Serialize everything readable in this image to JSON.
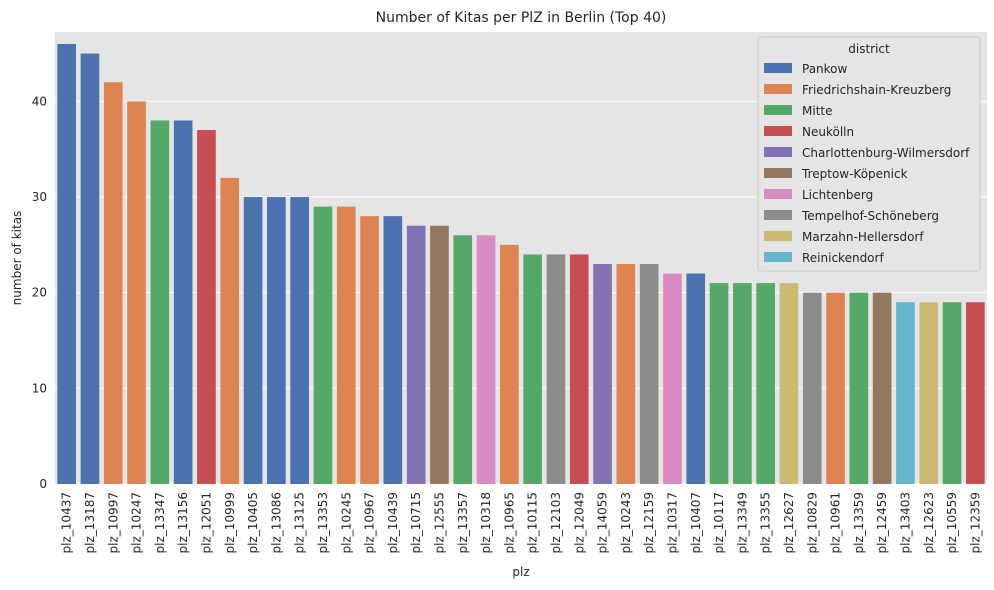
{
  "chart_data": {
    "type": "bar",
    "title": "Number of Kitas per PlZ in Berlin (Top 40)",
    "xlabel": "plz",
    "ylabel": "number of kitas",
    "ylim": [
      0,
      47.25
    ],
    "yticks": [
      0,
      10,
      20,
      30,
      40
    ],
    "grid": true,
    "legend": {
      "title": "district",
      "placement": "top-right",
      "entries": [
        {
          "name": "Pankow",
          "color": "#4c72b0"
        },
        {
          "name": "Friedrichshain-Kreuzberg",
          "color": "#dd8452"
        },
        {
          "name": "Mitte",
          "color": "#55a868"
        },
        {
          "name": "Neukölln",
          "color": "#c44e52"
        },
        {
          "name": "Charlottenburg-Wilmersdorf",
          "color": "#8172b3"
        },
        {
          "name": "Treptow-Köpenick",
          "color": "#937860"
        },
        {
          "name": "Lichtenberg",
          "color": "#da8bc3"
        },
        {
          "name": "Tempelhof-Schöneberg",
          "color": "#8c8c8c"
        },
        {
          "name": "Marzahn-Hellersdorf",
          "color": "#ccb974"
        },
        {
          "name": "Reinickendorf",
          "color": "#64b5cd"
        }
      ]
    },
    "categories": [
      "plz_10437",
      "plz_13187",
      "plz_10997",
      "plz_10247",
      "plz_13347",
      "plz_13156",
      "plz_12051",
      "plz_10999",
      "plz_10405",
      "plz_13086",
      "plz_13125",
      "plz_13353",
      "plz_10245",
      "plz_10967",
      "plz_10439",
      "plz_10715",
      "plz_12555",
      "plz_13357",
      "plz_10318",
      "plz_10965",
      "plz_10115",
      "plz_12103",
      "plz_12049",
      "plz_14059",
      "plz_10243",
      "plz_12159",
      "plz_10317",
      "plz_10407",
      "plz_10117",
      "plz_13349",
      "plz_13355",
      "plz_12627",
      "plz_10829",
      "plz_10961",
      "plz_13359",
      "plz_12459",
      "plz_13403",
      "plz_12623",
      "plz_10559",
      "plz_12359"
    ],
    "values": [
      46,
      45,
      42,
      40,
      38,
      38,
      37,
      32,
      30,
      30,
      30,
      29,
      29,
      28,
      28,
      27,
      27,
      26,
      26,
      25,
      24,
      24,
      24,
      23,
      23,
      23,
      22,
      22,
      21,
      21,
      21,
      21,
      20,
      20,
      20,
      20,
      19,
      19,
      19,
      19
    ],
    "districts": [
      "Pankow",
      "Pankow",
      "Friedrichshain-Kreuzberg",
      "Friedrichshain-Kreuzberg",
      "Mitte",
      "Pankow",
      "Neukölln",
      "Friedrichshain-Kreuzberg",
      "Pankow",
      "Pankow",
      "Pankow",
      "Mitte",
      "Friedrichshain-Kreuzberg",
      "Friedrichshain-Kreuzberg",
      "Pankow",
      "Charlottenburg-Wilmersdorf",
      "Treptow-Köpenick",
      "Mitte",
      "Lichtenberg",
      "Friedrichshain-Kreuzberg",
      "Mitte",
      "Tempelhof-Schöneberg",
      "Neukölln",
      "Charlottenburg-Wilmersdorf",
      "Friedrichshain-Kreuzberg",
      "Tempelhof-Schöneberg",
      "Lichtenberg",
      "Pankow",
      "Mitte",
      "Mitte",
      "Mitte",
      "Marzahn-Hellersdorf",
      "Tempelhof-Schöneberg",
      "Friedrichshain-Kreuzberg",
      "Mitte",
      "Treptow-Köpenick",
      "Reinickendorf",
      "Marzahn-Hellersdorf",
      "Mitte",
      "Neukölln"
    ]
  }
}
